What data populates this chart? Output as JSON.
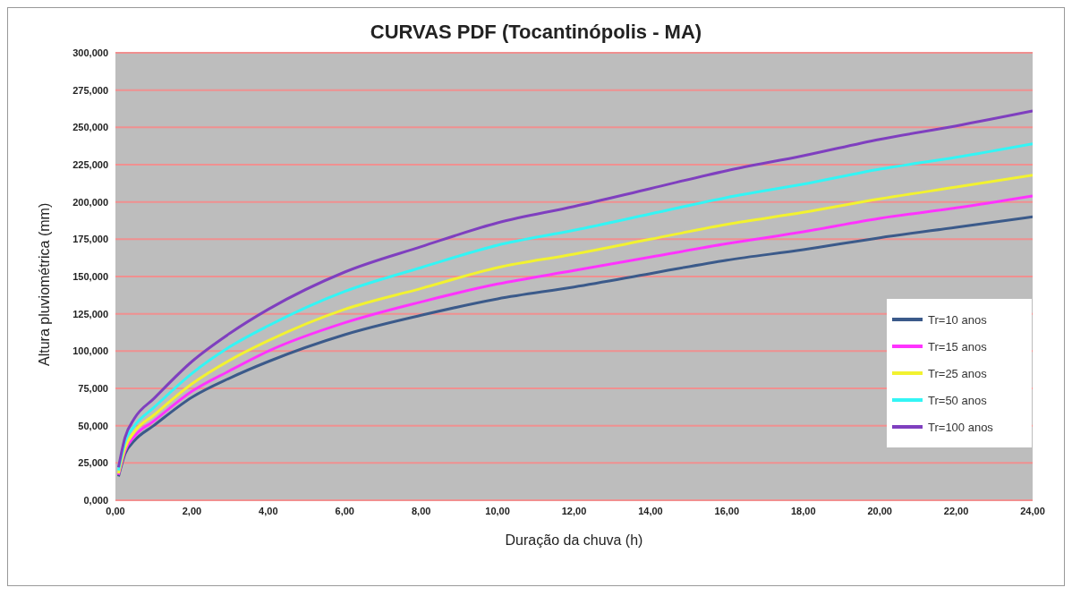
{
  "chart_data": {
    "type": "line",
    "title": "CURVAS PDF (Tocantinópolis - MA)",
    "xlabel": "Duração da chuva (h)",
    "ylabel": "Altura pluviométrica (mm)",
    "x": [
      0.08,
      0.25,
      0.5,
      1,
      2,
      3,
      4,
      6,
      8,
      10,
      12,
      14,
      16,
      18,
      20,
      22,
      24
    ],
    "series": [
      {
        "name": "Tr=10 anos",
        "color": "#3b5a8a",
        "values": [
          16,
          31,
          40,
          50,
          69,
          82,
          93,
          111,
          124,
          135,
          143,
          152,
          161,
          168,
          176,
          183,
          190
        ]
      },
      {
        "name": "Tr=15 anos",
        "color": "#ff33ff",
        "values": [
          17,
          33,
          43,
          53,
          73,
          87,
          100,
          119,
          133,
          145,
          154,
          163,
          172,
          180,
          189,
          196,
          204
        ]
      },
      {
        "name": "Tr=25 anos",
        "color": "#f2f230",
        "values": [
          18,
          35,
          46,
          57,
          78,
          94,
          107,
          128,
          142,
          156,
          165,
          175,
          185,
          193,
          202,
          210,
          218
        ]
      },
      {
        "name": "Tr=50 anos",
        "color": "#33f5f5",
        "values": [
          20,
          39,
          50,
          62,
          85,
          103,
          117,
          140,
          156,
          171,
          181,
          192,
          203,
          212,
          222,
          230,
          239
        ]
      },
      {
        "name": "Tr=100 anos",
        "color": "#7f3fbf",
        "values": [
          22,
          42,
          55,
          68,
          93,
          112,
          128,
          153,
          170,
          186,
          197,
          209,
          221,
          231,
          242,
          251,
          261
        ]
      }
    ],
    "xlim": [
      0,
      24
    ],
    "xticks": [
      {
        "value": 0,
        "label": "0,00"
      },
      {
        "value": 2,
        "label": "2,00"
      },
      {
        "value": 4,
        "label": "4,00"
      },
      {
        "value": 6,
        "label": "6,00"
      },
      {
        "value": 8,
        "label": "8,00"
      },
      {
        "value": 10,
        "label": "10,00"
      },
      {
        "value": 12,
        "label": "12,00"
      },
      {
        "value": 14,
        "label": "14,00"
      },
      {
        "value": 16,
        "label": "16,00"
      },
      {
        "value": 18,
        "label": "18,00"
      },
      {
        "value": 20,
        "label": "20,00"
      },
      {
        "value": 22,
        "label": "22,00"
      },
      {
        "value": 24,
        "label": "24,00"
      }
    ],
    "ylim": [
      0,
      300
    ],
    "yticks": [
      {
        "value": 0,
        "label": "0,000"
      },
      {
        "value": 25,
        "label": "25,000"
      },
      {
        "value": 50,
        "label": "50,000"
      },
      {
        "value": 75,
        "label": "75,000"
      },
      {
        "value": 100,
        "label": "100,000"
      },
      {
        "value": 125,
        "label": "125,000"
      },
      {
        "value": 150,
        "label": "150,000"
      },
      {
        "value": 175,
        "label": "175,000"
      },
      {
        "value": 200,
        "label": "200,000"
      },
      {
        "value": 225,
        "label": "225,000"
      },
      {
        "value": 250,
        "label": "250,000"
      },
      {
        "value": 275,
        "label": "275,000"
      },
      {
        "value": 300,
        "label": "300,000"
      }
    ],
    "grid": "y",
    "legend": "right",
    "marker": "none",
    "line_style": "solid"
  }
}
